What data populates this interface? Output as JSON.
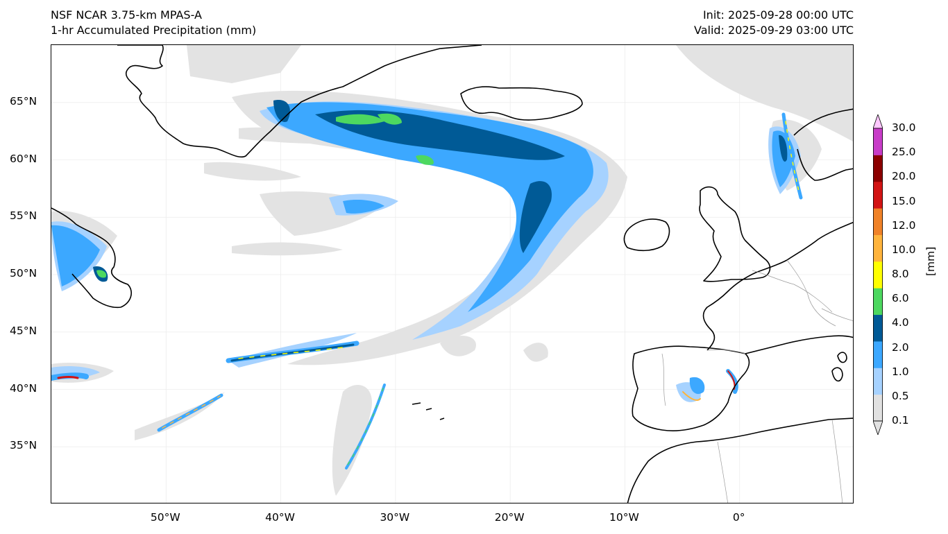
{
  "header": {
    "model": "NSF NCAR 3.75-km MPAS-A",
    "field": "1-hr Accumulated Precipitation (mm)",
    "init": "Init: 2025-09-28 00:00 UTC",
    "valid": "Valid: 2025-09-29 03:00 UTC"
  },
  "map": {
    "lon_range": [
      -60,
      10
    ],
    "lat_range": [
      30,
      70
    ],
    "lat_ticks": [
      "65°N",
      "60°N",
      "55°N",
      "50°N",
      "45°N",
      "40°N",
      "35°N"
    ],
    "lon_ticks": [
      "50°W",
      "40°W",
      "30°W",
      "20°W",
      "10°W",
      "0°"
    ],
    "gridlines": true,
    "coastline_color": "#000000"
  },
  "colorbar": {
    "unit_label": "[mm]",
    "levels": [
      "0.1",
      "0.5",
      "1.0",
      "2.0",
      "4.0",
      "6.0",
      "8.0",
      "10.0",
      "12.0",
      "15.0",
      "20.0",
      "25.0",
      "30.0"
    ],
    "colors": [
      "#e1e1e1",
      "#a6d2ff",
      "#3ca8ff",
      "#005a96",
      "#4dd860",
      "#ffff00",
      "#ffb43c",
      "#f08228",
      "#d21414",
      "#8c0000",
      "#c83cc8",
      "#ffc8ff"
    ],
    "extend": "both"
  }
}
